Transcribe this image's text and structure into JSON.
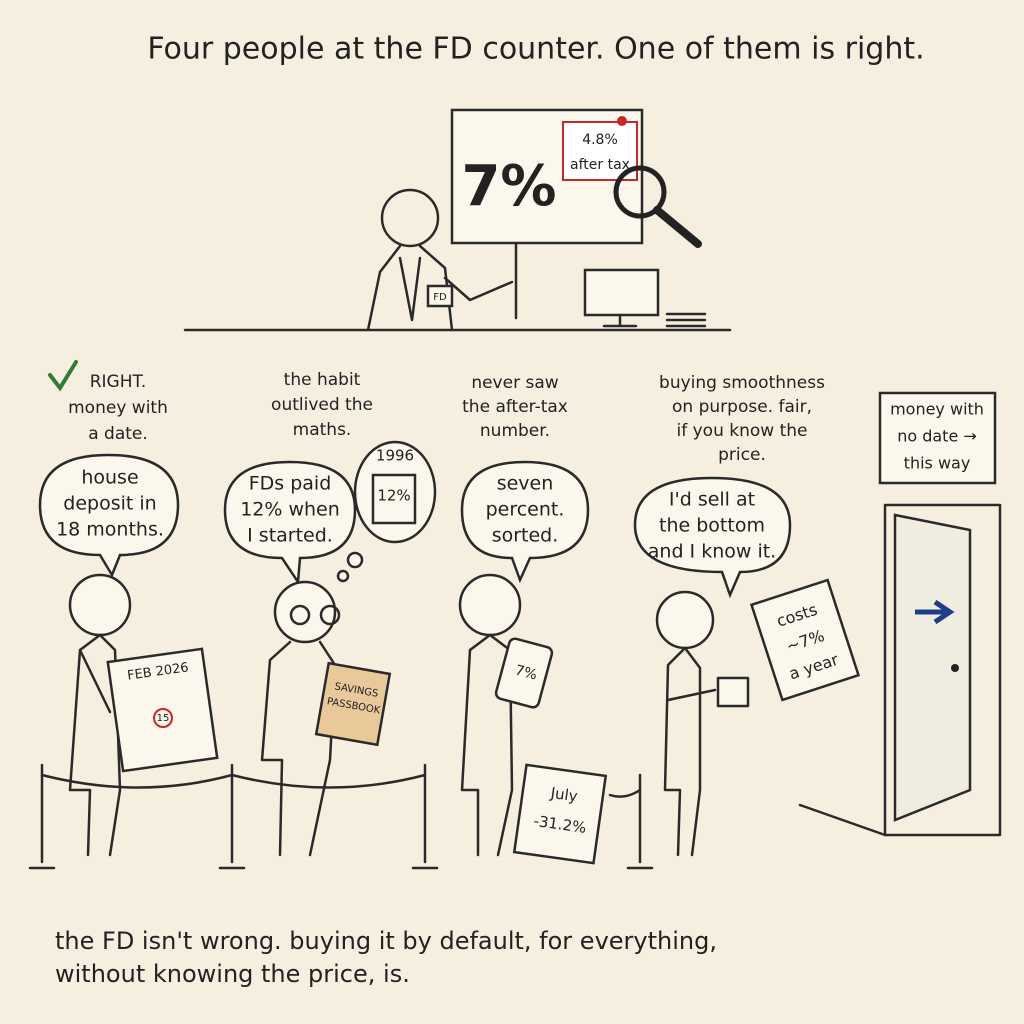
{
  "title": "Four people at the FD counter. One of them is right.",
  "sign": {
    "main": "7%",
    "note": [
      "4.8%",
      "after tax"
    ]
  },
  "teller": {
    "badge": "FD"
  },
  "people": [
    {
      "annotation": [
        "RIGHT.",
        "money with",
        "a date."
      ],
      "speech": [
        "house",
        "deposit in",
        "18 months."
      ],
      "prop": [
        "FEB 2026",
        "15"
      ]
    },
    {
      "annotation": [
        "the habit",
        "outlived the",
        "maths."
      ],
      "speech": [
        "FDs paid",
        "12% when",
        "I started."
      ],
      "thought": [
        "1996",
        "12%"
      ],
      "prop": [
        "SAVINGS",
        "PASSBOOK"
      ]
    },
    {
      "annotation": [
        "never saw",
        "the after-tax",
        "number."
      ],
      "speech": [
        "seven",
        "percent.",
        "sorted."
      ],
      "prop": [
        "7%"
      ],
      "paper": [
        "July",
        "-31.2%"
      ]
    },
    {
      "annotation": [
        "buying smoothness",
        "on purpose. fair,",
        "if you know the",
        "price."
      ],
      "speech": [
        "I'd sell at",
        "the bottom",
        "and I know it."
      ],
      "tag": [
        "costs",
        "~7%",
        "a year"
      ]
    }
  ],
  "door_sign": [
    "money with",
    "no date →",
    "this way"
  ],
  "footer": [
    "the FD isn't wrong. buying it by default, for everything,",
    "without knowing the price, is."
  ]
}
